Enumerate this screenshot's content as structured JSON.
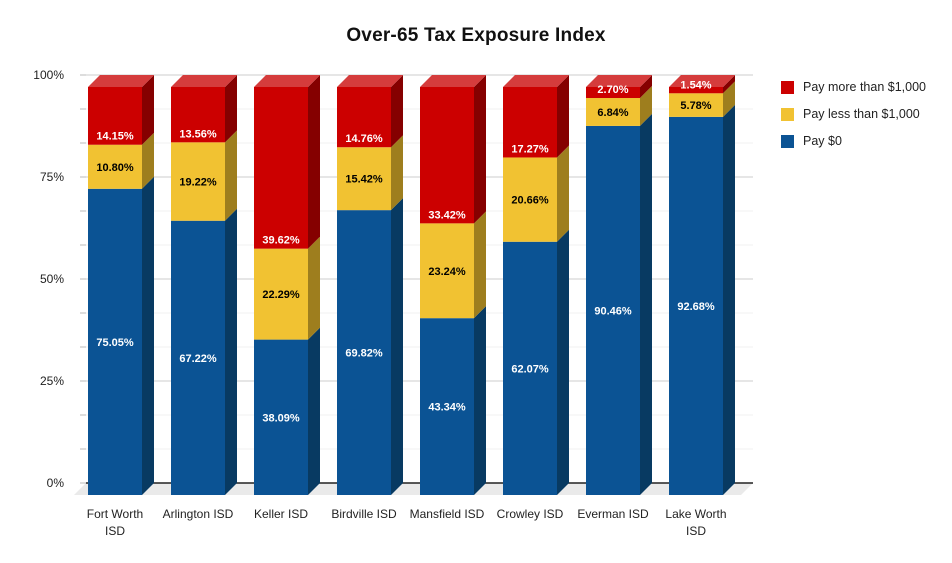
{
  "chart_data": {
    "type": "bar",
    "variant": "3d-stacked-column-100pct",
    "title": "Over-65 Tax Exposure Index",
    "categories": [
      "Fort Worth ISD",
      "Arlington ISD",
      "Keller ISD",
      "Birdville ISD",
      "Mansfield ISD",
      "Crowley ISD",
      "Everman ISD",
      "Lake Worth ISD"
    ],
    "category_label_lines": [
      [
        "Fort Worth",
        "ISD"
      ],
      [
        "Arlington ISD"
      ],
      [
        "Keller ISD"
      ],
      [
        "Birdville ISD"
      ],
      [
        "Mansfield ISD"
      ],
      [
        "Crowley ISD"
      ],
      [
        "Everman ISD"
      ],
      [
        "Lake Worth",
        "ISD"
      ]
    ],
    "series": [
      {
        "name": "Pay $0",
        "color": "#0B5394",
        "side_color": "#083A62",
        "top_color": "#3D85C6",
        "label_text_color": "#FFFFFF",
        "values": [
          75.05,
          67.22,
          38.09,
          69.82,
          43.34,
          62.07,
          90.46,
          92.68
        ]
      },
      {
        "name": "Pay less than $1,000",
        "color": "#F1C232",
        "side_color": "#9E7E1E",
        "top_color": "#F5CE58",
        "label_text_color": "#000000",
        "values": [
          10.8,
          19.22,
          22.29,
          15.42,
          23.24,
          20.66,
          6.84,
          5.78
        ]
      },
      {
        "name": "Pay more than $1,000",
        "color": "#CC0000",
        "side_color": "#850000",
        "top_color": "#D53C3C",
        "label_text_color": "#FFFFFF",
        "values": [
          14.15,
          13.56,
          39.62,
          14.76,
          33.42,
          17.27,
          2.7,
          1.54
        ]
      }
    ],
    "value_label_suffix": "%",
    "value_label_decimals": 2,
    "y_axis": {
      "min": 0,
      "max": 100,
      "tick_labels": [
        "0%",
        "25%",
        "50%",
        "75%",
        "100%"
      ],
      "minor_divisions": 12
    },
    "legend": {
      "position": "right",
      "entries": [
        {
          "label": "Pay more than $1,000",
          "color": "#CC0000"
        },
        {
          "label": "Pay less than $1,000",
          "color": "#F1C232"
        },
        {
          "label": "Pay $0",
          "color": "#0B5394"
        }
      ]
    },
    "grid": {
      "major_color": "#CCCCCC",
      "minor_color": "#F0F0F0",
      "baseline_color": "#222222",
      "tick_color": "#BBBBBB",
      "floor_color": "#EAEAEA",
      "axis_text_color": "#222222"
    }
  }
}
